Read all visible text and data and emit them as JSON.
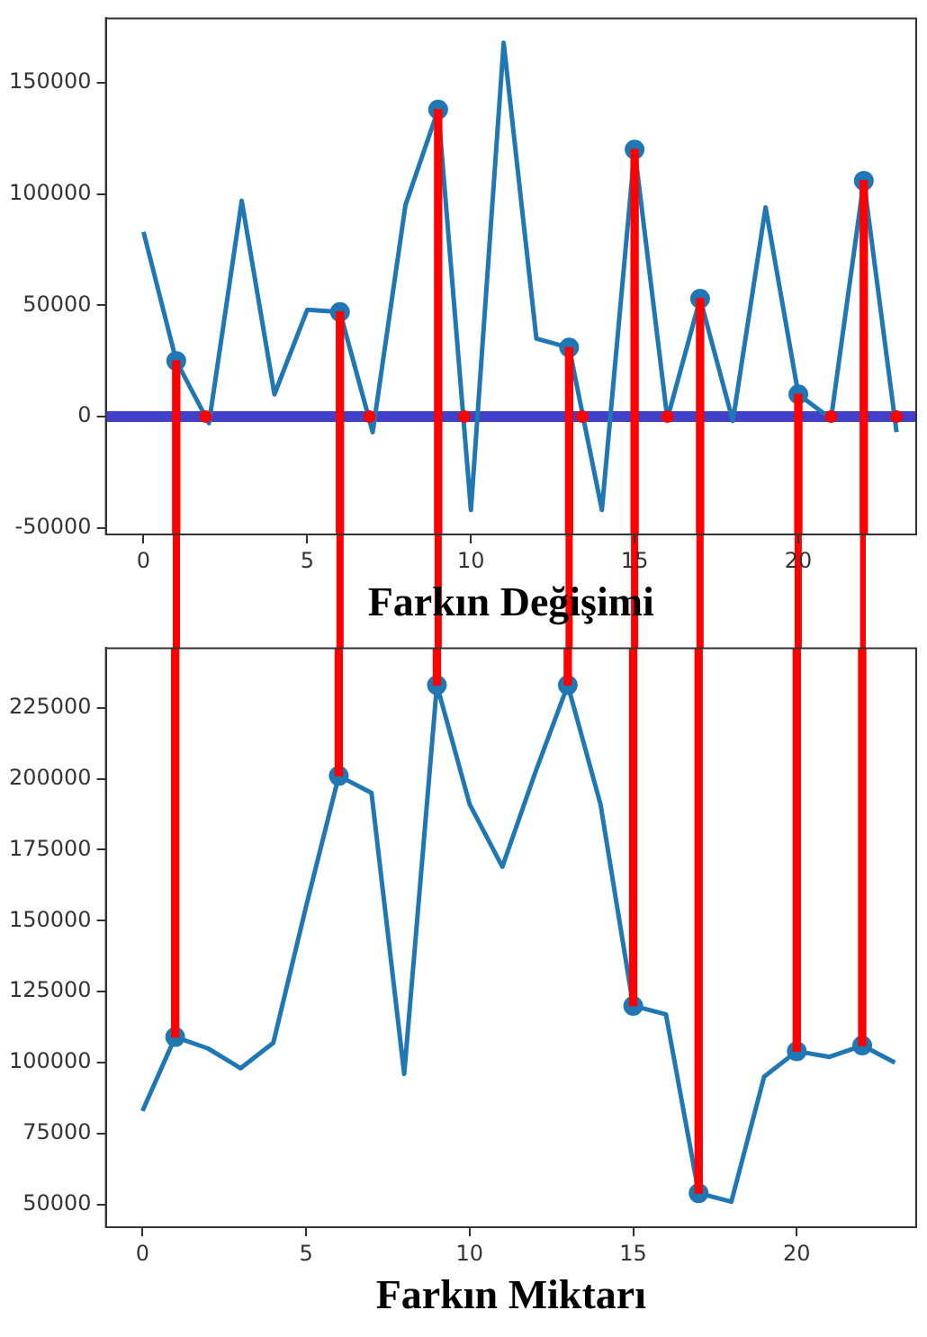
{
  "chart_data": [
    {
      "type": "line",
      "xlabel": "Farkın Değişimi",
      "x": [
        0,
        1,
        2,
        3,
        4,
        5,
        6,
        7,
        8,
        9,
        10,
        11,
        12,
        13,
        14,
        15,
        16,
        17,
        18,
        19,
        20,
        21,
        22,
        23
      ],
      "xlim": [
        -1.15,
        23.6
      ],
      "xticks": [
        0,
        5,
        10,
        15,
        20
      ],
      "ylim": [
        -53000,
        179000
      ],
      "yticks": [
        -50000,
        0,
        50000,
        100000,
        150000
      ],
      "grid": false,
      "legend": false,
      "ref_lines": [
        {
          "axis": "y",
          "value": 0,
          "color": "#4040c8"
        }
      ],
      "series": [
        {
          "color": "#1f77b4",
          "marker": "none",
          "values": [
            83000,
            25000,
            -3000,
            97000,
            10000,
            48000,
            47000,
            -7000,
            95000,
            138000,
            -42000,
            168000,
            35000,
            31000,
            -42000,
            120000,
            -1000,
            53000,
            -2000,
            94000,
            10000,
            -1000,
            106000,
            -7000
          ]
        },
        {
          "type": "scatter",
          "color": "#1f77b4",
          "marker": "circle",
          "x": [
            1,
            6,
            9,
            13,
            15,
            17,
            20,
            22
          ],
          "values": [
            25000,
            47000,
            138000,
            31000,
            120000,
            53000,
            10000,
            106000
          ]
        },
        {
          "type": "bar",
          "color": "#ff0000",
          "x": [
            1,
            6,
            9,
            13,
            15,
            17,
            20,
            22
          ],
          "base": [
            -53000,
            -53000,
            -53000,
            -53000,
            -53000,
            -53000,
            -53000,
            -53000
          ],
          "values": [
            78000,
            100000,
            191000,
            84000,
            173000,
            106000,
            63000,
            159000
          ]
        },
        {
          "type": "scatter",
          "color": "#ff0000",
          "marker": "circle",
          "x": [
            1.9,
            6.9,
            9.8,
            13.4,
            16,
            21,
            23
          ],
          "values": [
            0,
            0,
            0,
            0,
            0,
            0,
            0
          ]
        }
      ]
    },
    {
      "type": "line",
      "xlabel": "Farkın Miktarı",
      "x": [
        0,
        1,
        2,
        3,
        4,
        5,
        6,
        7,
        8,
        9,
        10,
        11,
        12,
        13,
        14,
        15,
        16,
        17,
        18,
        19,
        20,
        21,
        22,
        23
      ],
      "xlim": [
        -1.12,
        23.65
      ],
      "xticks": [
        0,
        5,
        10,
        15,
        20
      ],
      "ylim": [
        42000,
        246000
      ],
      "yticks": [
        50000,
        75000,
        100000,
        125000,
        150000,
        175000,
        200000,
        225000
      ],
      "grid": false,
      "legend": false,
      "series": [
        {
          "color": "#1f77b4",
          "marker": "none",
          "values": [
            83000,
            109000,
            105000,
            98000,
            107000,
            155000,
            201000,
            195000,
            96000,
            233000,
            191000,
            169000,
            202000,
            233000,
            191000,
            120000,
            117000,
            54000,
            51000,
            95000,
            104000,
            102000,
            106000,
            100000
          ]
        },
        {
          "type": "scatter",
          "color": "#1f77b4",
          "marker": "circle",
          "x": [
            1,
            6,
            9,
            13,
            15,
            17,
            20,
            22
          ],
          "values": [
            109000,
            201000,
            233000,
            233000,
            120000,
            54000,
            104000,
            106000
          ]
        },
        {
          "type": "bar",
          "color": "#ff0000",
          "x": [
            1,
            6,
            9,
            13,
            15,
            17,
            20,
            22
          ],
          "base": [
            109000,
            201000,
            233000,
            233000,
            120000,
            54000,
            104000,
            106000
          ],
          "values": [
            137000,
            45000,
            13000,
            13000,
            126000,
            192000,
            142000,
            140000
          ]
        }
      ]
    }
  ]
}
